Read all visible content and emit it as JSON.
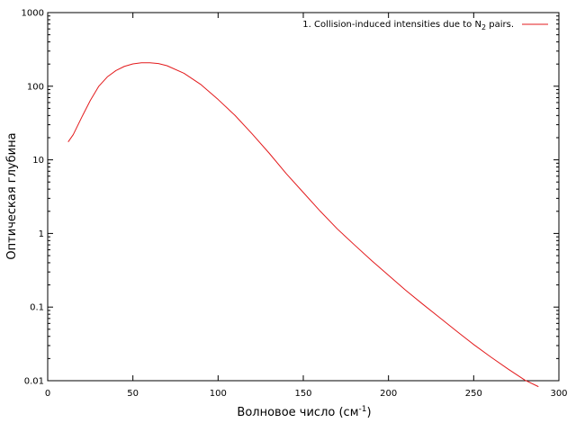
{
  "chart_data": {
    "type": "line",
    "title": "",
    "xlabel": "Волновое число (см",
    "xlabel_sup": "-1",
    "xlabel_end": ")",
    "ylabel": "Оптическая глубина",
    "xlim": [
      0,
      300
    ],
    "ylim": [
      0.01,
      1000
    ],
    "y_scale": "log",
    "grid": false,
    "legend_position": "top-right",
    "x_ticks": [
      "0",
      "50",
      "100",
      "150",
      "200",
      "250",
      "300"
    ],
    "y_ticks": [
      "0.01",
      "0.1",
      "1",
      "10",
      "100",
      "1000"
    ],
    "series": [
      {
        "name": "1. Collision-induced intensities due to N",
        "name_sub": "2",
        "name_end": " pairs.",
        "color": "#e31a1c",
        "x": [
          12,
          15,
          20,
          25,
          30,
          35,
          40,
          45,
          50,
          55,
          60,
          65,
          70,
          80,
          90,
          100,
          110,
          120,
          130,
          140,
          150,
          160,
          170,
          180,
          190,
          200,
          210,
          220,
          230,
          240,
          250,
          260,
          270,
          280,
          288
        ],
        "y": [
          17.5,
          22,
          38,
          64,
          100,
          134,
          163,
          186,
          201,
          208,
          208,
          203,
          190,
          150,
          105,
          66,
          40,
          22.5,
          12.3,
          6.5,
          3.6,
          2.0,
          1.15,
          0.7,
          0.43,
          0.27,
          0.17,
          0.11,
          0.072,
          0.047,
          0.031,
          0.021,
          0.0145,
          0.0102,
          0.0083
        ]
      }
    ]
  }
}
